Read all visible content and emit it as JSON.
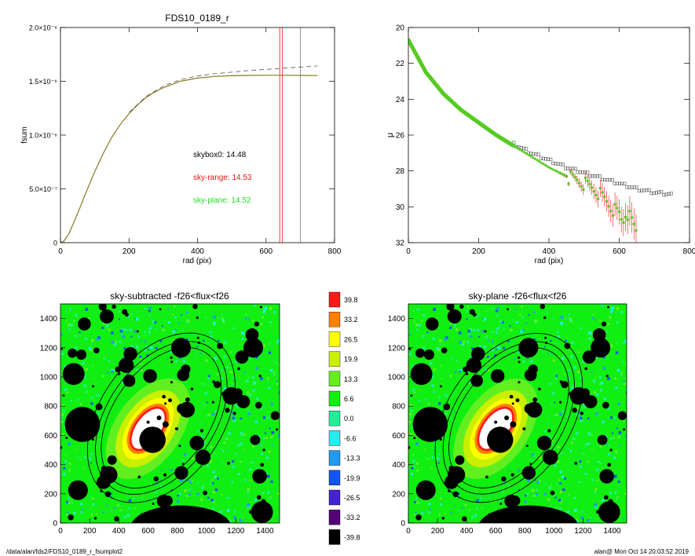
{
  "footer": {
    "path": "/data/alan/fds2/FDS10_0189_r_fsumplot2",
    "stamp": "alan@  Mon Oct 14 20:03:52 2019"
  },
  "colors": {
    "fsum_solid": "#8a7a20",
    "fsum_dashed": "#555555",
    "skybox0": "#000000",
    "sky_range": "#ee1111",
    "sky_plane": "#22dd22",
    "profile_green": "#55cc22",
    "profile_gray": "#555555",
    "ellipse": "#000000"
  },
  "chart_data": [
    {
      "type": "line",
      "title": "FDS10_0189_r",
      "xlabel": "rad (pix)",
      "ylabel": "fsum",
      "xlim": [
        0,
        800
      ],
      "ylim": [
        0,
        2e-06
      ],
      "xticks": [
        "0",
        "200",
        "400",
        "600",
        "800"
      ],
      "yticks": [
        "0",
        "5.0×10⁻⁷",
        "1.0×10⁻⁶",
        "1.5×10⁻⁶",
        "2.0×10⁻⁶"
      ],
      "series": [
        {
          "style": "solid",
          "x": [
            0,
            10,
            25,
            50,
            75,
            100,
            125,
            150,
            175,
            200,
            225,
            250,
            275,
            300,
            350,
            400,
            450,
            500,
            550,
            600,
            650,
            700,
            750
          ],
          "y": [
            0,
            1.5e-08,
            8.5e-08,
            2.7e-07,
            4.7e-07,
            6.6e-07,
            8.3e-07,
            9.8e-07,
            1.1e-06,
            1.2e-06,
            1.28e-06,
            1.35e-06,
            1.4e-06,
            1.44e-06,
            1.5e-06,
            1.53e-06,
            1.545e-06,
            1.552e-06,
            1.555e-06,
            1.556e-06,
            1.556e-06,
            1.555e-06,
            1.553e-06
          ]
        },
        {
          "style": "dashed",
          "x": [
            200,
            250,
            300,
            350,
            400,
            450,
            500,
            550,
            600,
            650,
            700,
            750
          ],
          "y": [
            1.21e-06,
            1.36e-06,
            1.455e-06,
            1.515e-06,
            1.55e-06,
            1.57e-06,
            1.585e-06,
            1.6e-06,
            1.61e-06,
            1.622e-06,
            1.632e-06,
            1.642e-06
          ]
        }
      ],
      "vlines": [
        {
          "x": 640,
          "color": "#ee1111"
        },
        {
          "x": 648,
          "color": "#ee1111"
        },
        {
          "x": 700,
          "color": "#777777"
        }
      ],
      "annotations": [
        {
          "label": "skybox0:",
          "value": "14.48",
          "color": "#000000"
        },
        {
          "label": "sky-range:",
          "value": "14.53",
          "color": "#ee1111"
        },
        {
          "label": "sky-plane:",
          "value": "14.52",
          "color": "#22dd22"
        }
      ]
    },
    {
      "type": "scatter",
      "title": "",
      "xlabel": "rad (pix)",
      "ylabel": "μ",
      "xlim": [
        0,
        800
      ],
      "ylim": [
        32,
        20
      ],
      "xticks": [
        "0",
        "200",
        "400",
        "600",
        "800"
      ],
      "yticks": [
        "20",
        "22",
        "24",
        "26",
        "28",
        "30",
        "32"
      ],
      "series": [
        {
          "role": "sky-subtracted profile",
          "x": [
            0,
            50,
            100,
            150,
            200,
            250,
            300,
            350,
            400,
            420,
            440,
            460,
            480,
            500,
            520,
            540,
            560,
            580,
            600,
            610,
            620,
            630,
            640,
            650
          ],
          "y": [
            20.7,
            22.5,
            23.7,
            24.6,
            25.3,
            26.0,
            26.6,
            27.2,
            27.8,
            28.0,
            28.2,
            28.4,
            28.5,
            28.7,
            28.9,
            29.2,
            29.6,
            30.1,
            30.4,
            30.9,
            30.2,
            30.6,
            31.0,
            31.4
          ]
        },
        {
          "role": "unsubtracted profile",
          "x": [
            300,
            350,
            400,
            450,
            500,
            550,
            600,
            650,
            700,
            750
          ],
          "y": [
            26.5,
            27.0,
            27.4,
            27.8,
            28.1,
            28.4,
            28.7,
            29.0,
            29.2,
            29.3
          ]
        }
      ]
    },
    {
      "type": "heatmap",
      "title": "sky-subtracted -f26<flux<f26",
      "xlim": [
        0,
        1500
      ],
      "ylim": [
        0,
        1500
      ],
      "xticks": [
        "0",
        "200",
        "400",
        "600",
        "800",
        "1000",
        "1200",
        "1400"
      ],
      "yticks": [
        "0",
        "200",
        "400",
        "600",
        "800",
        "1000",
        "1200",
        "1400"
      ]
    },
    {
      "type": "heatmap",
      "title": "sky-plane -f26<flux<f26",
      "xlim": [
        0,
        1500
      ],
      "ylim": [
        0,
        1500
      ],
      "xticks": [
        "0",
        "200",
        "400",
        "600",
        "800",
        "1000",
        "1200",
        "1400"
      ],
      "yticks": [
        "0",
        "200",
        "400",
        "600",
        "800",
        "1000",
        "1200",
        "1400"
      ]
    }
  ],
  "colorbar": {
    "labels": [
      "39.8",
      "33.2",
      "26.5",
      "19.9",
      "13.3",
      "6.6",
      "0.0",
      "-6.6",
      "-13.3",
      "-19.9",
      "-26.5",
      "-33.2",
      "-39.8"
    ],
    "colors": [
      "#ff1a1a",
      "#ff7f00",
      "#ffff00",
      "#c8f000",
      "#66ee22",
      "#11ee11",
      "#22ee99",
      "#22eeee",
      "#2299ee",
      "#1155ee",
      "#4422cc",
      "#550077",
      "#000000"
    ]
  }
}
